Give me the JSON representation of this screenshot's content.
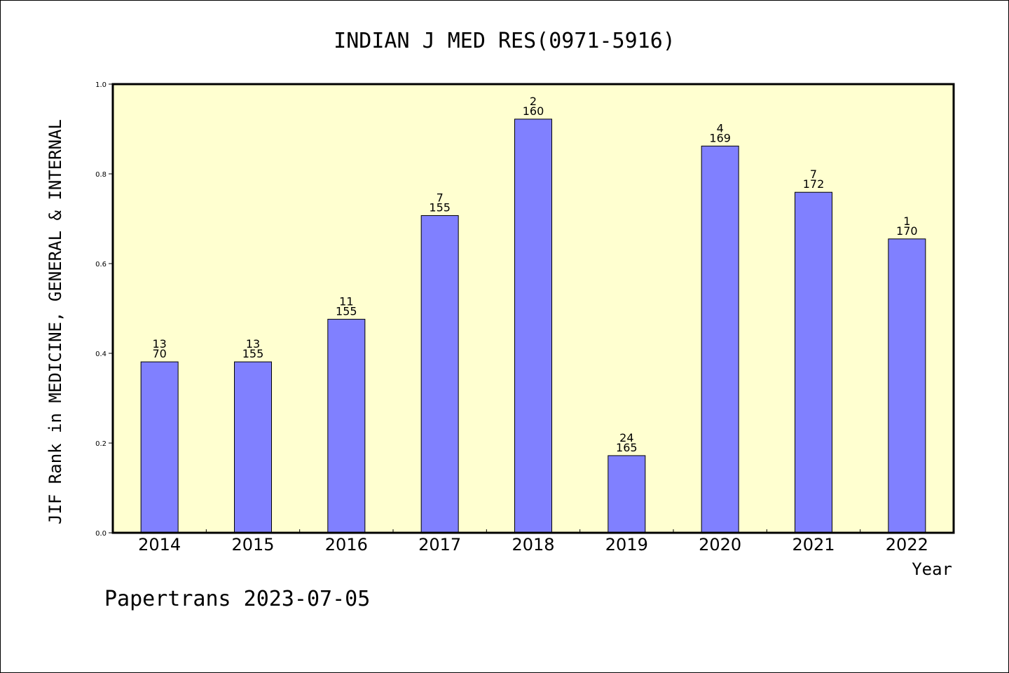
{
  "chart_data": {
    "type": "bar",
    "title": "INDIAN J MED RES(0971-5916)",
    "xlabel": "Year",
    "ylabel": "JIF Rank in MEDICINE, GENERAL & INTERNAL",
    "ylim": [
      0,
      1.0
    ],
    "yticks": [
      "0.0",
      "0.2",
      "0.4",
      "0.6",
      "0.8",
      "1.0"
    ],
    "categories": [
      "2014",
      "2015",
      "2016",
      "2017",
      "2018",
      "2019",
      "2020",
      "2021",
      "2022"
    ],
    "values": [
      0.381,
      0.381,
      0.476,
      0.707,
      0.922,
      0.172,
      0.862,
      0.759,
      0.655
    ],
    "label_top": [
      "13",
      "13",
      "11",
      "7",
      "2",
      "24",
      "4",
      "7",
      "1"
    ],
    "label_bottom": [
      "70",
      "155",
      "155",
      "155",
      "160",
      "165",
      "169",
      "172",
      "170"
    ],
    "grid": false,
    "colors": {
      "bar": "#8080ff",
      "plot_bg": "#ffffd0",
      "axis": "#000000"
    }
  },
  "footer": "Papertrans 2023-07-05"
}
